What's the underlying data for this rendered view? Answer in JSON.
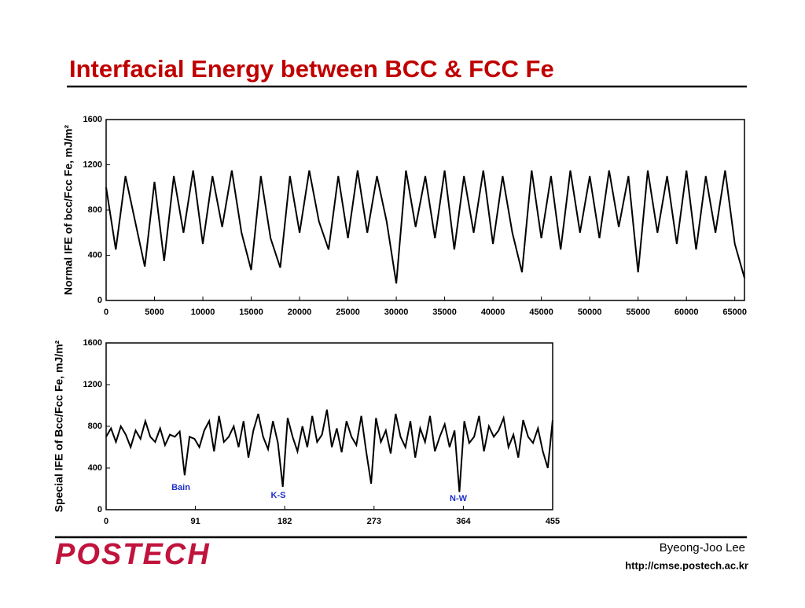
{
  "title": "Interfacial Energy between BCC & FCC Fe",
  "chart_data": [
    {
      "type": "line",
      "ylabel": "Normal IFE of bcc/Fcc Fe,  mJ/m²",
      "xlim": [
        0,
        66000
      ],
      "ylim": [
        0,
        1600
      ],
      "xticks": [
        0,
        5000,
        10000,
        15000,
        20000,
        25000,
        30000,
        35000,
        40000,
        45000,
        50000,
        55000,
        60000,
        65000
      ],
      "yticks": [
        0,
        400,
        800,
        1200,
        1600
      ],
      "x": [
        0,
        1000,
        2000,
        3000,
        4000,
        5000,
        6000,
        7000,
        8000,
        9000,
        10000,
        11000,
        12000,
        13000,
        14000,
        15000,
        16000,
        17000,
        18000,
        19000,
        20000,
        21000,
        22000,
        23000,
        24000,
        25000,
        26000,
        27000,
        28000,
        29000,
        30000,
        31000,
        32000,
        33000,
        34000,
        35000,
        36000,
        37000,
        38000,
        39000,
        40000,
        41000,
        42000,
        43000,
        44000,
        45000,
        46000,
        47000,
        48000,
        49000,
        50000,
        51000,
        52000,
        53000,
        54000,
        55000,
        56000,
        57000,
        58000,
        59000,
        60000,
        61000,
        62000,
        63000,
        64000,
        65000,
        66000
      ],
      "series": [
        {
          "color": "#000000",
          "values": [
            1000,
            450,
            1100,
            700,
            300,
            1050,
            350,
            1100,
            600,
            1150,
            500,
            1100,
            650,
            1150,
            600,
            270,
            1100,
            550,
            290,
            1100,
            600,
            1150,
            700,
            450,
            1100,
            550,
            1150,
            600,
            1100,
            700,
            150,
            1150,
            650,
            1100,
            550,
            1150,
            450,
            1100,
            600,
            1150,
            500,
            1100,
            600,
            250,
            1150,
            550,
            1100,
            450,
            1150,
            600,
            1100,
            550,
            1150,
            650,
            1100,
            250,
            1150,
            600,
            1100,
            500,
            1150,
            450,
            1100,
            600,
            1150,
            500,
            200
          ]
        }
      ]
    },
    {
      "type": "line",
      "ylabel": "Special IFE of Bcc/Fcc Fe,  mJ/m²",
      "xlim": [
        0,
        455
      ],
      "ylim": [
        0,
        1600
      ],
      "xticks": [
        0,
        91,
        182,
        273,
        364,
        455
      ],
      "yticks": [
        0,
        400,
        800,
        1200,
        1600
      ],
      "annotations": [
        "Bain",
        "K-S",
        "N-W"
      ],
      "x": [
        0,
        5,
        10,
        15,
        20,
        25,
        30,
        35,
        40,
        45,
        50,
        55,
        60,
        65,
        70,
        75,
        80,
        85,
        90,
        95,
        100,
        105,
        110,
        115,
        120,
        125,
        130,
        135,
        140,
        145,
        150,
        155,
        160,
        165,
        170,
        175,
        180,
        185,
        190,
        195,
        200,
        205,
        210,
        215,
        220,
        225,
        230,
        235,
        240,
        245,
        250,
        255,
        260,
        265,
        270,
        275,
        280,
        285,
        290,
        295,
        300,
        305,
        310,
        315,
        320,
        325,
        330,
        335,
        340,
        345,
        350,
        355,
        360,
        365,
        370,
        375,
        380,
        385,
        390,
        395,
        400,
        405,
        410,
        415,
        420,
        425,
        430,
        435,
        440,
        445,
        450,
        455
      ],
      "series": [
        {
          "color": "#000000",
          "values": [
            700,
            780,
            650,
            800,
            720,
            600,
            760,
            680,
            850,
            700,
            650,
            780,
            620,
            720,
            700,
            750,
            330,
            700,
            680,
            600,
            760,
            850,
            560,
            900,
            650,
            700,
            800,
            600,
            850,
            500,
            760,
            920,
            700,
            580,
            850,
            640,
            220,
            880,
            700,
            560,
            800,
            600,
            900,
            650,
            720,
            960,
            600,
            780,
            550,
            850,
            700,
            620,
            900,
            560,
            250,
            880,
            650,
            760,
            540,
            920,
            700,
            600,
            850,
            500,
            780,
            650,
            900,
            560,
            700,
            820,
            600,
            760,
            170,
            850,
            640,
            700,
            900,
            560,
            800,
            700,
            760,
            880,
            600,
            720,
            500,
            860,
            700,
            640,
            780,
            560,
            400,
            860
          ]
        }
      ]
    }
  ],
  "footer": {
    "logo": "POSTECH",
    "author": "Byeong-Joo Lee",
    "url": "http://cmse.postech.ac.kr"
  }
}
